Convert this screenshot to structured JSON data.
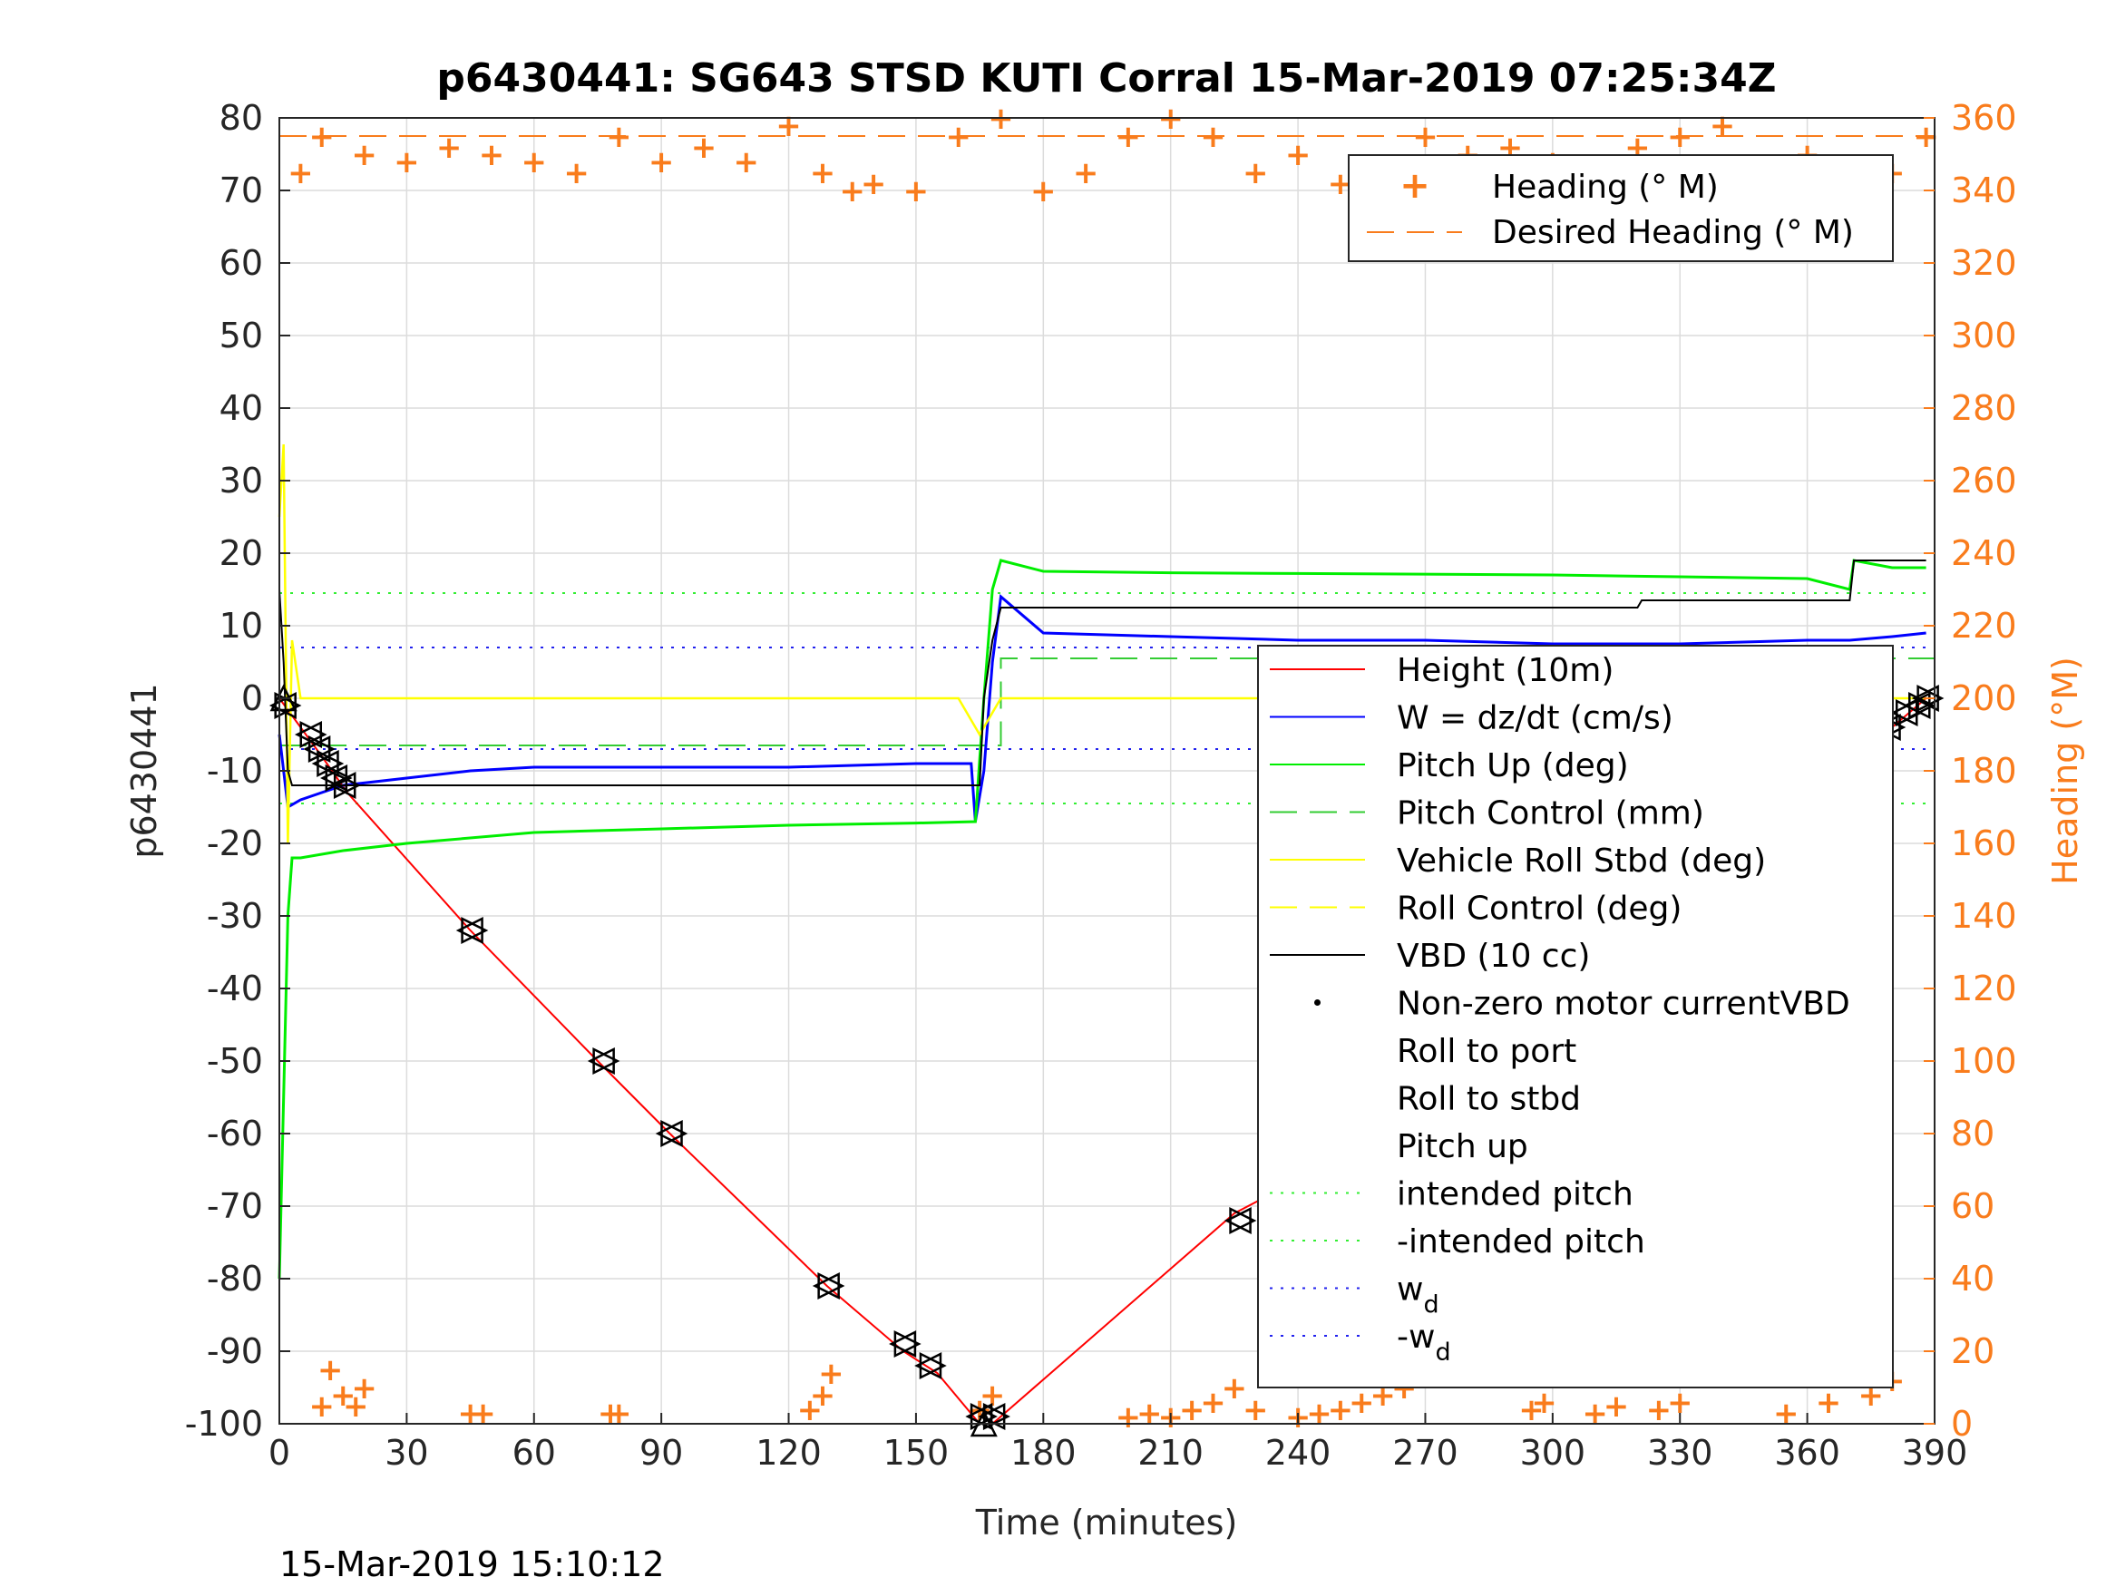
{
  "chart_data": {
    "type": "line",
    "title": "p6430441: SG643 STSD KUTI Corral 15-Mar-2019 07:25:34Z",
    "xlabel": "Time (minutes)",
    "ylabel": "p6430441",
    "y2label": "Heading (°M)",
    "footer": "15-Mar-2019 15:10:12",
    "xlim": [
      0,
      390
    ],
    "ylim": [
      -100,
      80
    ],
    "y2lim": [
      0,
      360
    ],
    "x_ticks": [
      "0",
      "30",
      "60",
      "90",
      "120",
      "150",
      "180",
      "210",
      "240",
      "270",
      "300",
      "330",
      "360",
      "390"
    ],
    "y_ticks": [
      "80",
      "70",
      "60",
      "50",
      "40",
      "30",
      "20",
      "10",
      "0",
      "-10",
      "-20",
      "-30",
      "-40",
      "-50",
      "-60",
      "-70",
      "-80",
      "-90",
      "-100"
    ],
    "y2_ticks": [
      "360",
      "340",
      "320",
      "300",
      "280",
      "260",
      "240",
      "220",
      "200",
      "180",
      "160",
      "140",
      "120",
      "100",
      "80",
      "60",
      "40",
      "20",
      "0"
    ],
    "grid": true,
    "colors": {
      "height": "#ff0000",
      "w": "#0000ff",
      "pitch": "#00ee00",
      "roll": "#ffff00",
      "vbd": "#000000",
      "heading": "#f97c1c"
    },
    "legend_heading": {
      "placement": "top-right",
      "entries": [
        "Heading (° M)",
        "Desired Heading (° M)"
      ]
    },
    "legend_main": {
      "placement": "right",
      "entries": [
        {
          "label": "Height (10m)",
          "sub": ""
        },
        {
          "label": "W = dz/dt (cm/s)",
          "sub": ""
        },
        {
          "label": "Pitch Up (deg)",
          "sub": ""
        },
        {
          "label": "Pitch Control (mm)",
          "sub": ""
        },
        {
          "label": "Vehicle Roll Stbd (deg)",
          "sub": ""
        },
        {
          "label": "Roll Control (deg)",
          "sub": ""
        },
        {
          "label": "VBD (10 cc)",
          "sub": ""
        },
        {
          "label": "Non-zero motor currentVBD",
          "sub": ""
        },
        {
          "label": "Roll to port",
          "sub": ""
        },
        {
          "label": "Roll to stbd",
          "sub": ""
        },
        {
          "label": "Pitch up",
          "sub": ""
        },
        {
          "label": "intended pitch",
          "sub": ""
        },
        {
          "label": "-intended pitch",
          "sub": ""
        },
        {
          "label": "w",
          "sub": "d"
        },
        {
          "label": "-w",
          "sub": "d"
        }
      ]
    },
    "series": [
      {
        "name": "Height (10m)",
        "axis": "left",
        "x": [
          0,
          10,
          16,
          45,
          75,
          92,
          129,
          147,
          155,
          165,
          168,
          170,
          225,
          238,
          263,
          296,
          322,
          334,
          350,
          358,
          365,
          372,
          380,
          388
        ],
        "y": [
          0,
          -8,
          -13,
          -32,
          -50,
          -60,
          -81,
          -90,
          -93,
          -100,
          -100,
          -99,
          -71,
          -67,
          -55,
          -41,
          -30,
          -25,
          -18,
          -14,
          -11,
          -8,
          -4,
          0
        ]
      },
      {
        "name": "W = dz/dt (cm/s)",
        "axis": "left",
        "x": [
          0,
          2,
          5,
          15,
          30,
          45,
          60,
          90,
          120,
          150,
          163,
          164,
          166,
          168,
          170,
          180,
          210,
          240,
          270,
          300,
          330,
          360,
          370,
          380,
          388
        ],
        "y": [
          -5,
          -15,
          -14,
          -12,
          -11,
          -10,
          -9.5,
          -9.5,
          -9.5,
          -9,
          -9,
          -17,
          -10,
          5,
          14,
          9,
          8.5,
          8,
          8,
          7.5,
          7.5,
          8,
          8,
          8.5,
          9
        ]
      },
      {
        "name": "Pitch Up (deg)",
        "axis": "left",
        "x": [
          0,
          2,
          3,
          5,
          15,
          30,
          60,
          90,
          120,
          150,
          164,
          166,
          168,
          170,
          180,
          210,
          240,
          300,
          360,
          370,
          371,
          380,
          388
        ],
        "y": [
          -80,
          -30,
          -22,
          -22,
          -21,
          -20,
          -18.5,
          -18,
          -17.5,
          -17.2,
          -17,
          0,
          15,
          19,
          17.5,
          17.3,
          17.2,
          17,
          16.5,
          15,
          19,
          18,
          18
        ]
      },
      {
        "name": "Vehicle Roll Stbd (deg)",
        "axis": "left",
        "x": [
          0,
          1,
          2,
          3,
          5,
          10,
          20,
          50,
          100,
          150,
          160,
          165,
          170,
          200,
          250,
          300,
          350,
          360,
          370,
          380,
          388
        ],
        "y": [
          25,
          35,
          -20,
          8,
          0,
          0,
          0,
          0,
          0,
          0,
          0,
          -5,
          0,
          0,
          0,
          0,
          0,
          0,
          0,
          0,
          0
        ]
      },
      {
        "name": "VBD (10 cc)",
        "axis": "left",
        "x": [
          0,
          1,
          2,
          3,
          5,
          165,
          166,
          168,
          170,
          320,
          321,
          370,
          371,
          388
        ],
        "y": [
          15,
          5,
          -10,
          -12,
          -12,
          -12,
          0,
          8,
          12.5,
          12.5,
          13.5,
          13.5,
          19,
          19
        ]
      },
      {
        "name": "intended pitch",
        "axis": "left",
        "x": [
          0,
          390
        ],
        "y": [
          14.5,
          14.5
        ]
      },
      {
        "name": "-intended pitch",
        "axis": "left",
        "x": [
          0,
          390
        ],
        "y": [
          -14.5,
          -14.5
        ]
      },
      {
        "name": "Pitch Control (mm)",
        "axis": "left",
        "x": [
          0,
          170,
          170,
          390
        ],
        "y": [
          -6.5,
          -6.5,
          5.5,
          5.5
        ]
      },
      {
        "name": "w_d",
        "axis": "left",
        "x": [
          0,
          390
        ],
        "y": [
          7,
          7
        ]
      },
      {
        "name": "-w_d",
        "axis": "left",
        "x": [
          0,
          390
        ],
        "y": [
          -7,
          -7
        ]
      },
      {
        "name": "Desired Heading (° M)",
        "axis": "right",
        "x": [
          0,
          390
        ],
        "y": [
          355,
          355
        ]
      },
      {
        "name": "Heading (° M)",
        "axis": "right",
        "x": [
          5,
          10,
          20,
          30,
          40,
          50,
          60,
          70,
          80,
          90,
          100,
          110,
          120,
          128,
          135,
          140,
          150,
          160,
          170,
          180,
          190,
          200,
          210,
          220,
          230,
          240,
          250,
          260,
          270,
          280,
          290,
          300,
          310,
          320,
          330,
          340,
          350,
          360,
          370,
          380,
          388
        ],
        "y": [
          345,
          355,
          350,
          348,
          352,
          350,
          348,
          345,
          355,
          348,
          352,
          348,
          358,
          345,
          340,
          342,
          340,
          355,
          360,
          340,
          345,
          355,
          360,
          355,
          345,
          350,
          342,
          345,
          355,
          350,
          352,
          348,
          340,
          352,
          355,
          358,
          340,
          350,
          335,
          345,
          355
        ]
      },
      {
        "name": "Heading (° M) low",
        "axis": "right",
        "x": [
          10,
          12,
          15,
          18,
          20,
          45,
          48,
          78,
          80,
          125,
          128,
          130,
          165,
          168,
          200,
          205,
          210,
          215,
          220,
          225,
          230,
          235,
          240,
          245,
          250,
          255,
          260,
          265,
          295,
          298,
          310,
          315,
          325,
          330,
          355,
          365,
          370,
          375,
          380
        ],
        "y": [
          5,
          15,
          8,
          5,
          10,
          3,
          3,
          3,
          3,
          4,
          8,
          14,
          4,
          8,
          2,
          3,
          2,
          4,
          6,
          10,
          4,
          20,
          2,
          3,
          4,
          6,
          8,
          10,
          4,
          6,
          3,
          5,
          4,
          6,
          3,
          6,
          15,
          8,
          12
        ]
      }
    ],
    "markers": {
      "roll_to_port": {
        "x": [
          1,
          7,
          9,
          11,
          13,
          15,
          45,
          76,
          92,
          129,
          147,
          153,
          165,
          168,
          226,
          237,
          263,
          296,
          321,
          333,
          350,
          357,
          361,
          365,
          370,
          373,
          376,
          379,
          383,
          386,
          388
        ],
        "y": [
          -1,
          -5,
          -7,
          -9,
          -11,
          -12,
          -32,
          -50,
          -60,
          -81,
          -89,
          -92,
          -99,
          -99,
          -72,
          -67,
          -55,
          -41,
          -30,
          -25,
          -18,
          -14,
          -13,
          -11,
          -8,
          -7,
          -5,
          -4,
          -2,
          -1,
          0
        ]
      },
      "pitch_up": {
        "x": [
          1,
          166
        ],
        "y": [
          0,
          -100
        ]
      }
    }
  }
}
